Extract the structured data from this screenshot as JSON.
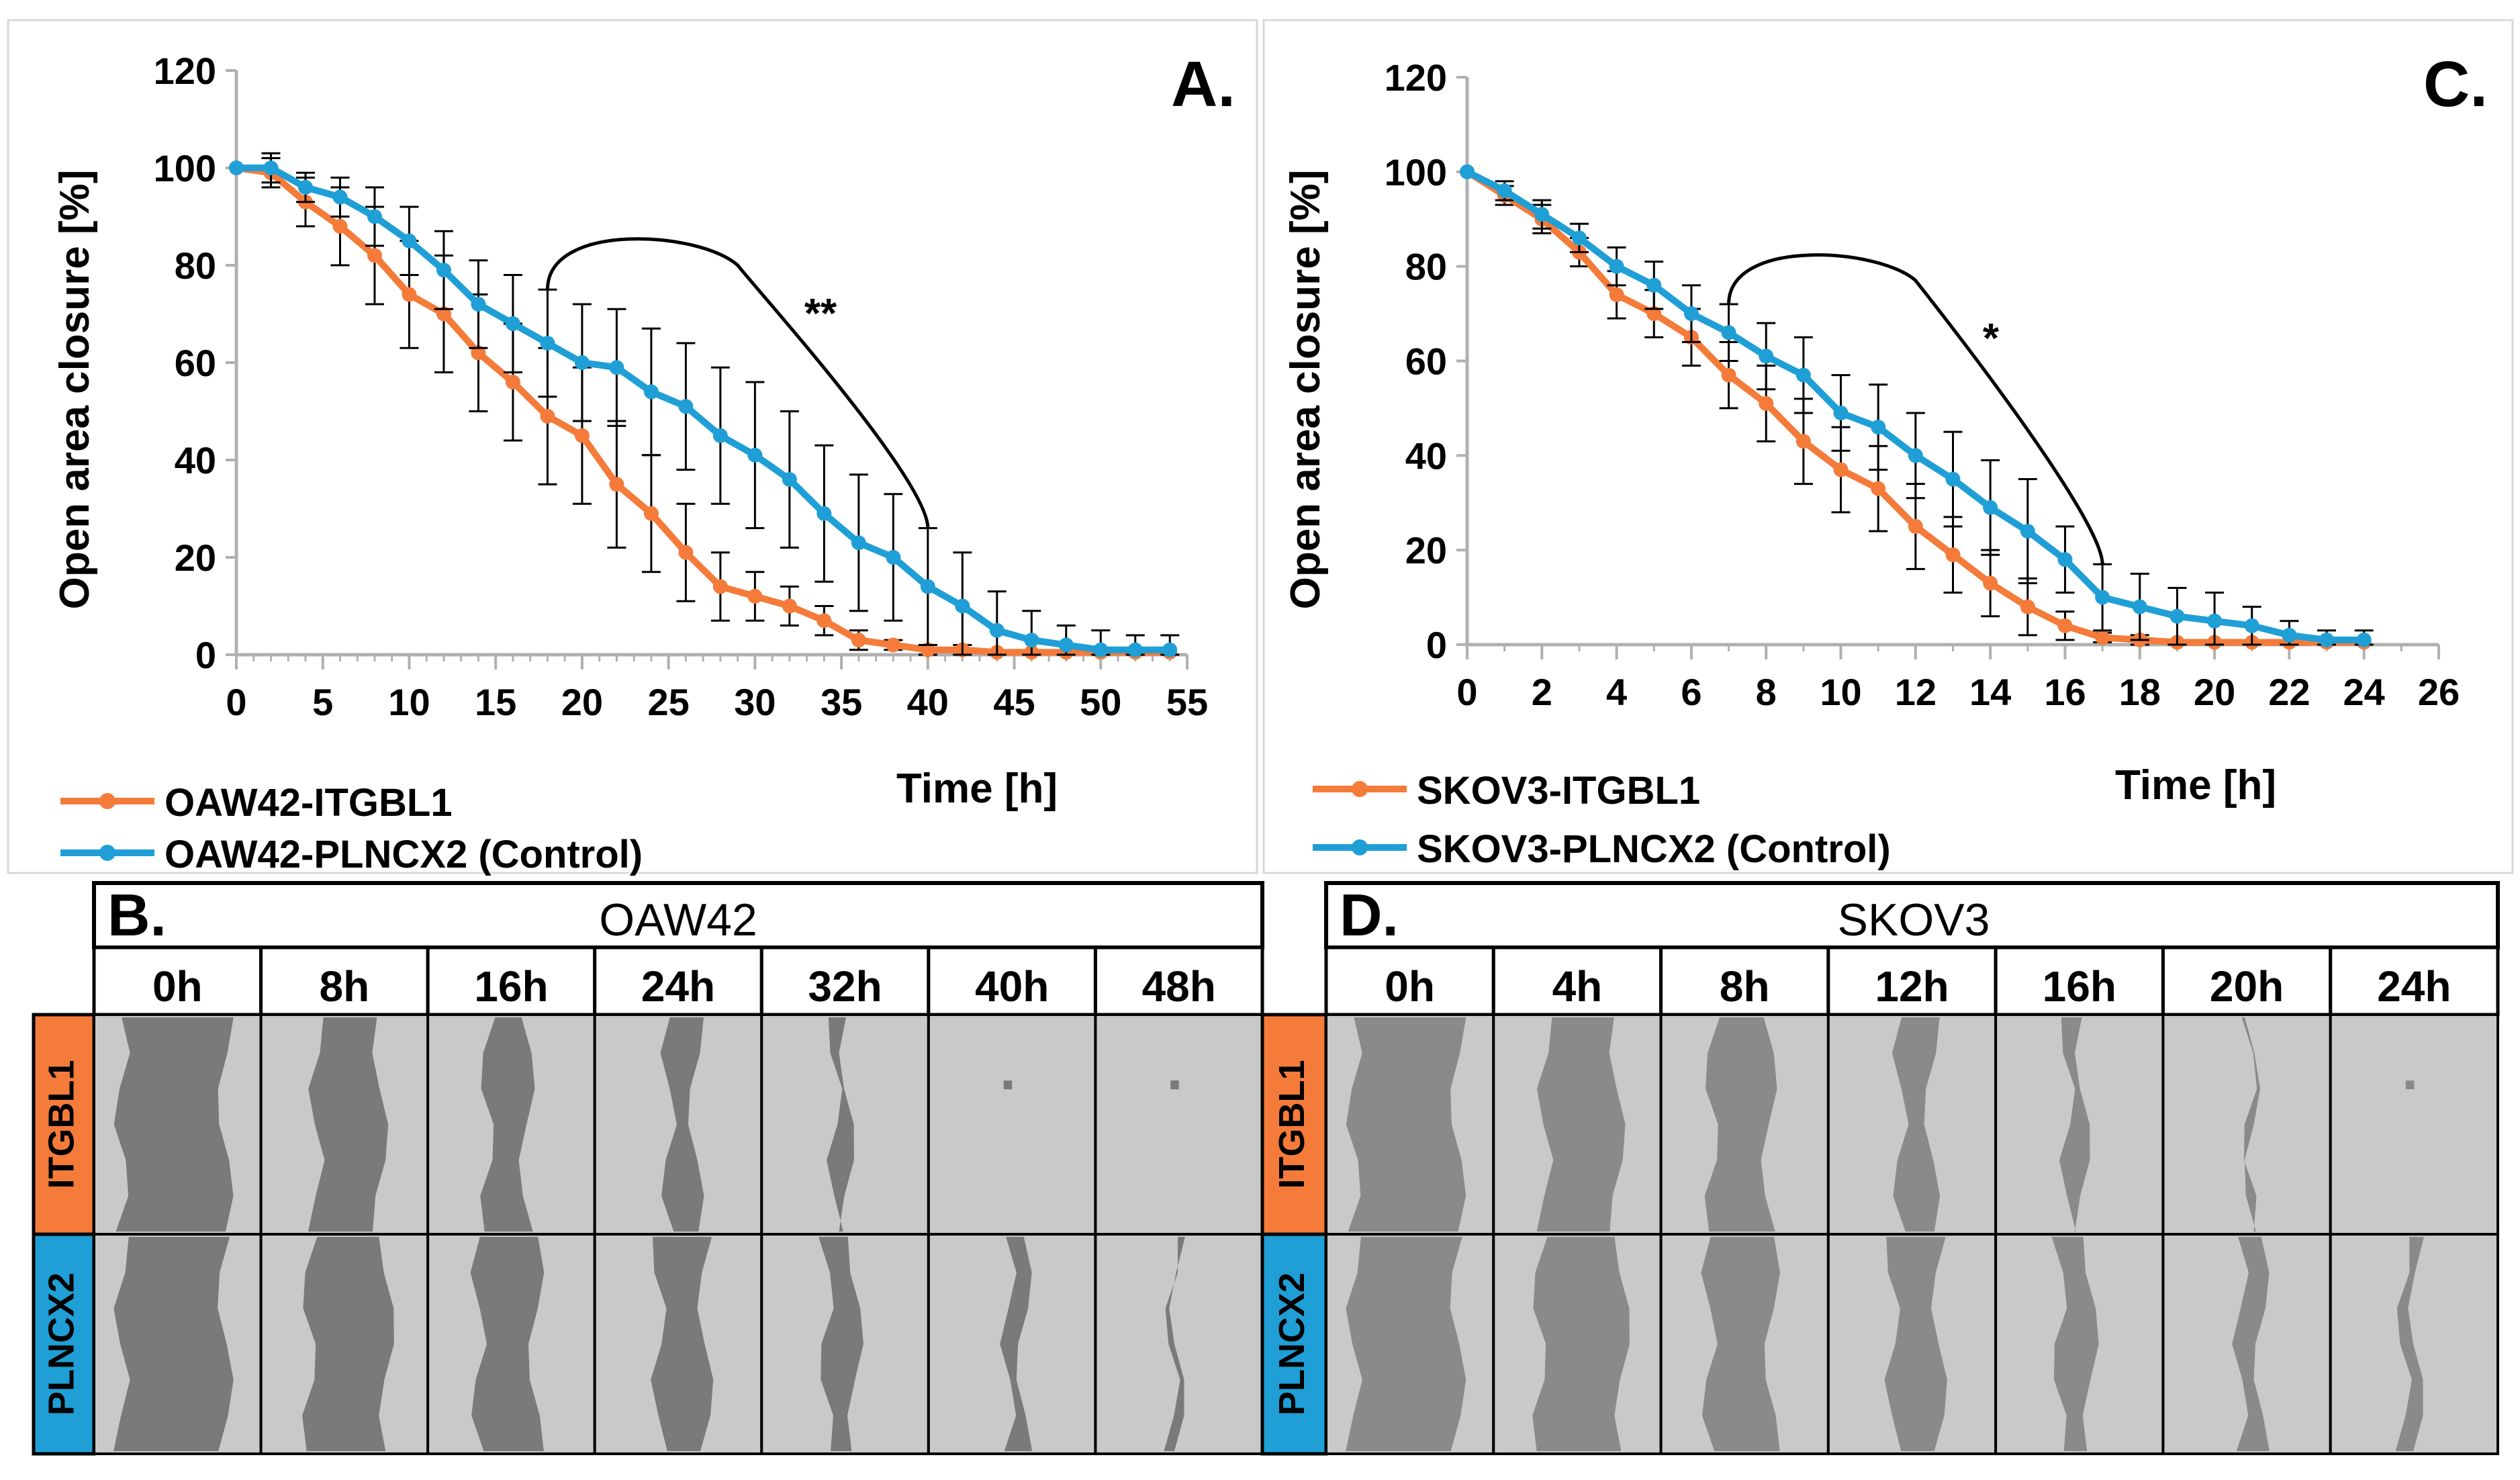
{
  "colors": {
    "itgbl1": "#f47b3a",
    "plncx2": "#1f9fd6",
    "axis": "#b0b0b0",
    "frame": "#d0d0d0",
    "cell_gap": "#6a6a6a",
    "cell_bg_oaw": "#7a7a7a",
    "cell_bg_skov": "#8a8a8a",
    "closed_area": "#c9c9c9"
  },
  "chart_data": [
    {
      "type": "line",
      "panel_letter": "A.",
      "ylabel": "Open area closure [%]",
      "xlabel": "Time [h]",
      "xlim": [
        0,
        55
      ],
      "ylim": [
        0,
        120
      ],
      "xticks": [
        "0",
        "5",
        "10",
        "15",
        "20",
        "25",
        "30",
        "35",
        "40",
        "45",
        "50",
        "55"
      ],
      "yticks": [
        "0",
        "20",
        "40",
        "60",
        "80",
        "100",
        "120"
      ],
      "annotation": "**",
      "annotation_range": [
        18,
        40
      ],
      "series": [
        {
          "name": "OAW42-ITGBL1",
          "color_key": "itgbl1",
          "x": [
            0,
            2,
            4,
            6,
            8,
            10,
            12,
            14,
            16,
            18,
            20,
            22,
            24,
            26,
            28,
            30,
            32,
            34,
            36,
            38,
            40,
            42,
            44,
            46,
            48,
            50,
            52,
            54
          ],
          "y": [
            100,
            99,
            93,
            88,
            82,
            74,
            70,
            62,
            56,
            49,
            45,
            35,
            29,
            21,
            14,
            12,
            10,
            7,
            3,
            2,
            1,
            1,
            0.5,
            0.5,
            0.5,
            0.5,
            0.5,
            0.5
          ],
          "err": [
            0,
            3,
            5,
            8,
            10,
            11,
            12,
            12,
            12,
            14,
            14,
            13,
            12,
            10,
            7,
            5,
            4,
            3,
            2,
            1,
            1,
            1,
            0,
            0,
            0,
            0,
            0,
            0
          ]
        },
        {
          "name": "OAW42-PLNCX2 (Control)",
          "color_key": "plncx2",
          "x": [
            0,
            2,
            4,
            6,
            8,
            10,
            12,
            14,
            16,
            18,
            20,
            22,
            24,
            26,
            28,
            30,
            32,
            34,
            36,
            38,
            40,
            42,
            44,
            46,
            48,
            50,
            52,
            54
          ],
          "y": [
            100,
            100,
            96,
            94,
            90,
            85,
            79,
            72,
            68,
            64,
            60,
            59,
            54,
            51,
            45,
            41,
            36,
            29,
            23,
            20,
            14,
            10,
            5,
            3,
            2,
            1,
            1,
            1
          ],
          "err": [
            0,
            3,
            3,
            4,
            6,
            7,
            8,
            9,
            10,
            11,
            12,
            12,
            13,
            13,
            14,
            15,
            14,
            14,
            14,
            13,
            12,
            11,
            8,
            6,
            4,
            4,
            3,
            3
          ]
        }
      ]
    },
    {
      "type": "line",
      "panel_letter": "C.",
      "ylabel": "Open area closure [%]",
      "xlabel": "Time [h]",
      "xlim": [
        0,
        26
      ],
      "ylim": [
        0,
        120
      ],
      "xticks": [
        "0",
        "2",
        "4",
        "6",
        "8",
        "10",
        "12",
        "14",
        "16",
        "18",
        "20",
        "22",
        "24",
        "26"
      ],
      "yticks": [
        "0",
        "20",
        "40",
        "60",
        "80",
        "100",
        "120"
      ],
      "annotation": "*",
      "annotation_range": [
        7,
        17
      ],
      "series": [
        {
          "name": "SKOV3-ITGBL1",
          "color_key": "itgbl1",
          "x": [
            0,
            1,
            2,
            3,
            4,
            5,
            6,
            7,
            8,
            9,
            10,
            11,
            12,
            13,
            14,
            15,
            16,
            17,
            18,
            19,
            20,
            21,
            22,
            23,
            24
          ],
          "y": [
            100,
            95,
            90,
            83,
            74,
            70,
            65,
            57,
            51,
            43,
            37,
            33,
            25,
            19,
            13,
            8,
            4,
            1.5,
            1,
            0.5,
            0.5,
            0.5,
            0.5,
            0.5,
            0.5
          ],
          "err": [
            0,
            2,
            3,
            3,
            5,
            5,
            6,
            7,
            8,
            9,
            9,
            9,
            9,
            8,
            7,
            6,
            3,
            1,
            1,
            0,
            0,
            0,
            0,
            0,
            0
          ]
        },
        {
          "name": "SKOV3-PLNCX2 (Control)",
          "color_key": "plncx2",
          "x": [
            0,
            1,
            2,
            3,
            4,
            5,
            6,
            7,
            8,
            9,
            10,
            11,
            12,
            13,
            14,
            15,
            16,
            17,
            18,
            19,
            20,
            21,
            22,
            23,
            24
          ],
          "y": [
            100,
            96,
            91,
            86,
            80,
            76,
            70,
            66,
            61,
            57,
            49,
            46,
            40,
            35,
            29,
            24,
            18,
            10,
            8,
            6,
            5,
            4,
            2,
            1,
            1
          ],
          "err": [
            0,
            2,
            3,
            3,
            4,
            5,
            6,
            6,
            7,
            8,
            8,
            9,
            9,
            10,
            10,
            11,
            7,
            7,
            7,
            6,
            6,
            4,
            3,
            2,
            2
          ]
        }
      ]
    }
  ],
  "panel_b": {
    "letter": "B.",
    "title": "OAW42",
    "times": [
      "0h",
      "8h",
      "16h",
      "24h",
      "32h",
      "40h",
      "48h"
    ],
    "row_labels": [
      "ITGBL1",
      "PLNCX2"
    ],
    "gap_closure_itgbl1": [
      0,
      0.38,
      0.62,
      0.74,
      0.88,
      0.99,
      1
    ],
    "gap_closure_plncx2": [
      0,
      0.25,
      0.45,
      0.55,
      0.72,
      0.85,
      0.95
    ]
  },
  "panel_d": {
    "letter": "D.",
    "title": "SKOV3",
    "times": [
      "0h",
      "4h",
      "8h",
      "12h",
      "16h",
      "20h",
      "24h"
    ],
    "row_labels": [
      "ITGBL1",
      "PLNCX2"
    ],
    "gap_closure_itgbl1": [
      0,
      0.3,
      0.45,
      0.7,
      0.85,
      0.98,
      1
    ],
    "gap_closure_plncx2": [
      0,
      0.2,
      0.4,
      0.55,
      0.7,
      0.8,
      0.88
    ]
  }
}
